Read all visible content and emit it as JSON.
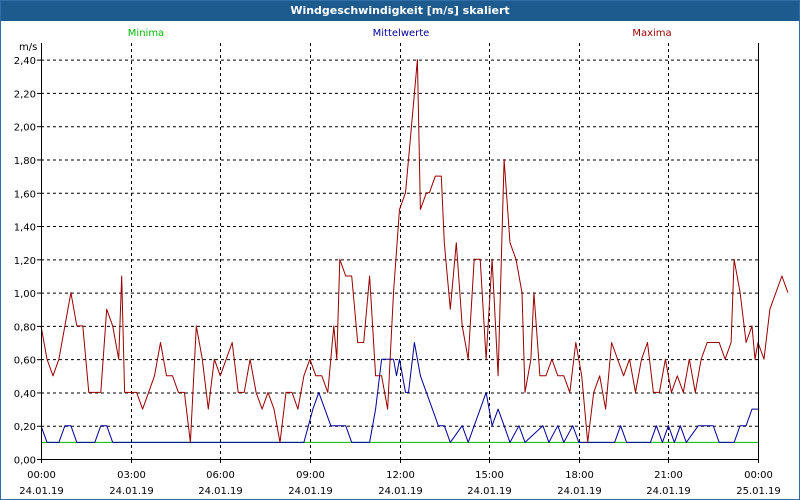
{
  "window": {
    "title": "Windgeschwindigkeit [m/s] skaliert"
  },
  "chart_data": {
    "type": "line",
    "title": "Windgeschwindigkeit [m/s] skaliert",
    "ylabel": "m/s",
    "ylim": [
      0,
      2.5
    ],
    "xlim_hours": [
      0,
      24
    ],
    "grid": true,
    "colors": {
      "Minima": "#00bb00",
      "Mittelwerte": "#000099",
      "Maxima": "#990000",
      "axis": "#000000",
      "grid": "#000000"
    },
    "y_ticks": [
      "0,00",
      "0,20",
      "0,40",
      "0,60",
      "0,80",
      "1,00",
      "1,20",
      "1,40",
      "1,60",
      "1,80",
      "2,00",
      "2,20",
      "2,40"
    ],
    "y_tick_values": [
      0,
      0.2,
      0.4,
      0.6,
      0.8,
      1.0,
      1.2,
      1.4,
      1.6,
      1.8,
      2.0,
      2.2,
      2.4
    ],
    "x_ticks": [
      {
        "time": "00:00",
        "date": "24.01.19",
        "hour": 0
      },
      {
        "time": "03:00",
        "date": "24.01.19",
        "hour": 3
      },
      {
        "time": "06:00",
        "date": "24.01.19",
        "hour": 6
      },
      {
        "time": "09:00",
        "date": "24.01.19",
        "hour": 9
      },
      {
        "time": "12:00",
        "date": "24.01.19",
        "hour": 12
      },
      {
        "time": "15:00",
        "date": "24.01.19",
        "hour": 15
      },
      {
        "time": "18:00",
        "date": "24.01.19",
        "hour": 18
      },
      {
        "time": "21:00",
        "date": "24.01.19",
        "hour": 21
      },
      {
        "time": "00:00",
        "date": "25.01.19",
        "hour": 24
      }
    ],
    "series": [
      {
        "name": "Minima",
        "points": [
          [
            0,
            0.1
          ],
          [
            24,
            0.1
          ]
        ]
      },
      {
        "name": "Mittelwerte",
        "points": [
          [
            0,
            0.2
          ],
          [
            0.2,
            0.1
          ],
          [
            0.6,
            0.1
          ],
          [
            0.8,
            0.2
          ],
          [
            1.0,
            0.2
          ],
          [
            1.2,
            0.1
          ],
          [
            1.8,
            0.1
          ],
          [
            2.0,
            0.2
          ],
          [
            2.2,
            0.2
          ],
          [
            2.4,
            0.1
          ],
          [
            8.8,
            0.1
          ],
          [
            9.1,
            0.3
          ],
          [
            9.3,
            0.4
          ],
          [
            9.5,
            0.3
          ],
          [
            9.7,
            0.2
          ],
          [
            10.2,
            0.2
          ],
          [
            10.4,
            0.1
          ],
          [
            11.0,
            0.1
          ],
          [
            11.2,
            0.3
          ],
          [
            11.4,
            0.6
          ],
          [
            11.8,
            0.6
          ],
          [
            11.9,
            0.5
          ],
          [
            12.0,
            0.6
          ],
          [
            12.2,
            0.4
          ],
          [
            12.3,
            0.4
          ],
          [
            12.5,
            0.7
          ],
          [
            12.7,
            0.5
          ],
          [
            12.9,
            0.4
          ],
          [
            13.1,
            0.3
          ],
          [
            13.3,
            0.2
          ],
          [
            13.5,
            0.2
          ],
          [
            13.7,
            0.1
          ],
          [
            14.1,
            0.2
          ],
          [
            14.3,
            0.1
          ],
          [
            14.5,
            0.2
          ],
          [
            14.7,
            0.3
          ],
          [
            14.9,
            0.4
          ],
          [
            15.1,
            0.2
          ],
          [
            15.3,
            0.3
          ],
          [
            15.5,
            0.2
          ],
          [
            15.7,
            0.1
          ],
          [
            16.0,
            0.2
          ],
          [
            16.2,
            0.1
          ],
          [
            16.8,
            0.2
          ],
          [
            17.0,
            0.1
          ],
          [
            17.3,
            0.2
          ],
          [
            17.5,
            0.1
          ],
          [
            17.8,
            0.2
          ],
          [
            18.0,
            0.1
          ],
          [
            18.3,
            0.1
          ],
          [
            19.2,
            0.1
          ],
          [
            19.4,
            0.2
          ],
          [
            19.6,
            0.1
          ],
          [
            20.4,
            0.1
          ],
          [
            20.6,
            0.2
          ],
          [
            20.8,
            0.1
          ],
          [
            21.0,
            0.2
          ],
          [
            21.2,
            0.1
          ],
          [
            21.4,
            0.2
          ],
          [
            21.6,
            0.1
          ],
          [
            22.0,
            0.2
          ],
          [
            22.5,
            0.2
          ],
          [
            22.7,
            0.1
          ],
          [
            23.2,
            0.1
          ],
          [
            23.4,
            0.2
          ],
          [
            23.6,
            0.2
          ],
          [
            23.8,
            0.3
          ],
          [
            24.0,
            0.3
          ]
        ]
      },
      {
        "name": "Maxima",
        "points": [
          [
            0,
            0.8
          ],
          [
            0.2,
            0.6
          ],
          [
            0.4,
            0.5
          ],
          [
            0.6,
            0.6
          ],
          [
            0.8,
            0.8
          ],
          [
            1.0,
            1.0
          ],
          [
            1.2,
            0.8
          ],
          [
            1.4,
            0.8
          ],
          [
            1.6,
            0.4
          ],
          [
            2.0,
            0.4
          ],
          [
            2.2,
            0.9
          ],
          [
            2.4,
            0.8
          ],
          [
            2.6,
            0.6
          ],
          [
            2.7,
            1.1
          ],
          [
            2.8,
            0.4
          ],
          [
            3.2,
            0.4
          ],
          [
            3.4,
            0.3
          ],
          [
            3.6,
            0.4
          ],
          [
            3.8,
            0.5
          ],
          [
            4.0,
            0.7
          ],
          [
            4.2,
            0.5
          ],
          [
            4.4,
            0.5
          ],
          [
            4.6,
            0.4
          ],
          [
            4.8,
            0.4
          ],
          [
            5.0,
            0.1
          ],
          [
            5.2,
            0.8
          ],
          [
            5.4,
            0.6
          ],
          [
            5.6,
            0.3
          ],
          [
            5.8,
            0.6
          ],
          [
            6.0,
            0.5
          ],
          [
            6.2,
            0.6
          ],
          [
            6.4,
            0.7
          ],
          [
            6.6,
            0.4
          ],
          [
            6.8,
            0.4
          ],
          [
            7.0,
            0.6
          ],
          [
            7.2,
            0.4
          ],
          [
            7.4,
            0.3
          ],
          [
            7.6,
            0.4
          ],
          [
            7.8,
            0.3
          ],
          [
            8.0,
            0.1
          ],
          [
            8.2,
            0.4
          ],
          [
            8.4,
            0.4
          ],
          [
            8.6,
            0.3
          ],
          [
            8.8,
            0.5
          ],
          [
            9.0,
            0.6
          ],
          [
            9.2,
            0.5
          ],
          [
            9.4,
            0.5
          ],
          [
            9.6,
            0.4
          ],
          [
            9.8,
            0.8
          ],
          [
            9.9,
            0.6
          ],
          [
            10.0,
            1.2
          ],
          [
            10.2,
            1.1
          ],
          [
            10.4,
            1.1
          ],
          [
            10.6,
            0.7
          ],
          [
            10.8,
            0.7
          ],
          [
            11.0,
            1.1
          ],
          [
            11.2,
            0.5
          ],
          [
            11.4,
            0.5
          ],
          [
            11.6,
            0.3
          ],
          [
            11.8,
            1.0
          ],
          [
            12.0,
            1.5
          ],
          [
            12.2,
            1.6
          ],
          [
            12.4,
            2.0
          ],
          [
            12.6,
            2.4
          ],
          [
            12.7,
            1.5
          ],
          [
            12.9,
            1.6
          ],
          [
            13.0,
            1.6
          ],
          [
            13.2,
            1.7
          ],
          [
            13.4,
            1.7
          ],
          [
            13.5,
            1.3
          ],
          [
            13.7,
            0.9
          ],
          [
            13.9,
            1.3
          ],
          [
            14.1,
            0.8
          ],
          [
            14.3,
            0.6
          ],
          [
            14.5,
            1.2
          ],
          [
            14.7,
            1.2
          ],
          [
            14.9,
            0.6
          ],
          [
            15.1,
            1.2
          ],
          [
            15.3,
            0.5
          ],
          [
            15.5,
            1.8
          ],
          [
            15.7,
            1.3
          ],
          [
            15.9,
            1.2
          ],
          [
            16.1,
            1.0
          ],
          [
            16.2,
            0.4
          ],
          [
            16.4,
            0.6
          ],
          [
            16.5,
            1.0
          ],
          [
            16.7,
            0.5
          ],
          [
            16.9,
            0.5
          ],
          [
            17.1,
            0.6
          ],
          [
            17.3,
            0.5
          ],
          [
            17.5,
            0.5
          ],
          [
            17.7,
            0.4
          ],
          [
            17.9,
            0.7
          ],
          [
            18.1,
            0.5
          ],
          [
            18.3,
            0.1
          ],
          [
            18.5,
            0.4
          ],
          [
            18.7,
            0.5
          ],
          [
            18.9,
            0.3
          ],
          [
            19.1,
            0.7
          ],
          [
            19.3,
            0.6
          ],
          [
            19.5,
            0.5
          ],
          [
            19.7,
            0.6
          ],
          [
            19.9,
            0.4
          ],
          [
            20.1,
            0.6
          ],
          [
            20.3,
            0.7
          ],
          [
            20.5,
            0.4
          ],
          [
            20.7,
            0.4
          ],
          [
            20.9,
            0.6
          ],
          [
            21.1,
            0.4
          ],
          [
            21.3,
            0.5
          ],
          [
            21.5,
            0.4
          ],
          [
            21.7,
            0.6
          ],
          [
            21.9,
            0.4
          ],
          [
            22.1,
            0.6
          ],
          [
            22.3,
            0.7
          ],
          [
            22.5,
            0.7
          ],
          [
            22.7,
            0.7
          ],
          [
            22.9,
            0.6
          ],
          [
            23.1,
            0.7
          ],
          [
            23.2,
            1.2
          ],
          [
            23.4,
            1.0
          ],
          [
            23.6,
            0.7
          ],
          [
            23.8,
            0.8
          ],
          [
            23.9,
            0.6
          ],
          [
            24.0,
            0.7
          ],
          [
            24.2,
            0.6
          ],
          [
            24.4,
            0.9
          ],
          [
            24.6,
            1.0
          ],
          [
            24.8,
            1.1
          ],
          [
            25.0,
            1.0
          ]
        ]
      }
    ]
  }
}
